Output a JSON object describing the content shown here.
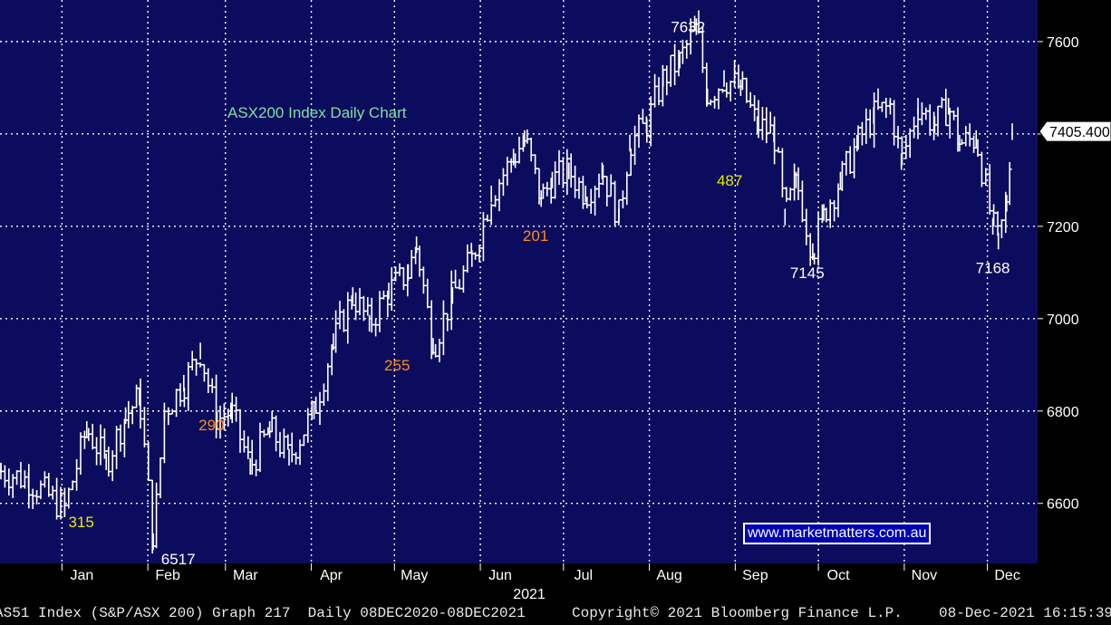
{
  "chart_data": {
    "type": "ohlc",
    "title": "ASX200 Index Daily Chart",
    "y_ticks": [
      6600,
      6800,
      7000,
      7200,
      7400,
      7600
    ],
    "ylim": [
      6470,
      7690
    ],
    "x_months": [
      "Jan",
      "Feb",
      "Mar",
      "Apr",
      "May",
      "Jun",
      "Jul",
      "Aug",
      "Sep",
      "Oct",
      "Nov",
      "Dec"
    ],
    "year_label": "2021",
    "last_price": "7405.400",
    "grid": true,
    "series": [
      {
        "name": "",
        "points": [
          [
            "2020-12-08",
            6670
          ],
          [
            "2020-12-18",
            6650
          ],
          [
            "2020-12-31",
            6588
          ],
          [
            "2021-01-08",
            6760
          ],
          [
            "2021-01-15",
            6690
          ],
          [
            "2021-01-22",
            6790
          ],
          [
            "2021-01-27",
            6830
          ],
          [
            "2021-02-01",
            6517
          ],
          [
            "2021-02-05",
            6800
          ],
          [
            "2021-02-12",
            6860
          ],
          [
            "2021-02-18",
            6930
          ],
          [
            "2021-02-24",
            6780
          ],
          [
            "2021-03-01",
            6800
          ],
          [
            "2021-03-08",
            6680
          ],
          [
            "2021-03-15",
            6760
          ],
          [
            "2021-03-22",
            6700
          ],
          [
            "2021-03-31",
            6800
          ],
          [
            "2021-04-07",
            6950
          ],
          [
            "2021-04-14",
            7050
          ],
          [
            "2021-04-20",
            6990
          ],
          [
            "2021-04-27",
            7060
          ],
          [
            "2021-05-04",
            7100
          ],
          [
            "2021-05-07",
            7160
          ],
          [
            "2021-05-13",
            6940
          ],
          [
            "2021-05-20",
            7050
          ],
          [
            "2021-05-27",
            7130
          ],
          [
            "2021-06-03",
            7270
          ],
          [
            "2021-06-11",
            7350
          ],
          [
            "2021-06-15",
            7390
          ],
          [
            "2021-06-21",
            7260
          ],
          [
            "2021-06-25",
            7300
          ],
          [
            "2021-07-01",
            7320
          ],
          [
            "2021-07-07",
            7270
          ],
          [
            "2021-07-13",
            7320
          ],
          [
            "2021-07-19",
            7220
          ],
          [
            "2021-07-23",
            7380
          ],
          [
            "2021-07-29",
            7420
          ],
          [
            "2021-08-04",
            7520
          ],
          [
            "2021-08-10",
            7560
          ],
          [
            "2021-08-16",
            7632
          ],
          [
            "2021-08-20",
            7480
          ],
          [
            "2021-08-26",
            7520
          ],
          [
            "2021-09-01",
            7500
          ],
          [
            "2021-09-07",
            7420
          ],
          [
            "2021-09-13",
            7400
          ],
          [
            "2021-09-17",
            7220
          ],
          [
            "2021-09-21",
            7300
          ],
          [
            "2021-09-27",
            7145
          ],
          [
            "2021-10-01",
            7230
          ],
          [
            "2021-10-07",
            7300
          ],
          [
            "2021-10-13",
            7380
          ],
          [
            "2021-10-19",
            7440
          ],
          [
            "2021-10-25",
            7460
          ],
          [
            "2021-10-29",
            7340
          ],
          [
            "2021-11-04",
            7460
          ],
          [
            "2021-11-10",
            7420
          ],
          [
            "2021-11-15",
            7460
          ],
          [
            "2021-11-19",
            7380
          ],
          [
            "2021-11-25",
            7390
          ],
          [
            "2021-12-01",
            7200
          ],
          [
            "2021-12-03",
            7168
          ],
          [
            "2021-12-06",
            7250
          ],
          [
            "2021-12-08",
            7405
          ]
        ]
      }
    ],
    "annotations": [
      {
        "text": "7632",
        "x": "2021-08-13",
        "y": 7632,
        "color": "#ffffff"
      },
      {
        "text": "487",
        "x": "2021-08-28",
        "y": 7300,
        "color": "#e8e800"
      },
      {
        "text": "201",
        "x": "2021-06-19",
        "y": 7180,
        "color": "#ff8c1a"
      },
      {
        "text": "7145",
        "x": "2021-09-25",
        "y": 7100,
        "color": "#ffffff"
      },
      {
        "text": "7168",
        "x": "2021-12-01",
        "y": 7110,
        "color": "#ffffff"
      },
      {
        "text": "255",
        "x": "2021-04-30",
        "y": 6900,
        "color": "#ff8c1a"
      },
      {
        "text": "290",
        "x": "2021-02-22",
        "y": 6770,
        "color": "#ff8c1a"
      },
      {
        "text": "315",
        "x": "2021-01-06",
        "y": 6560,
        "color": "#e8e800"
      },
      {
        "text": "6517",
        "x": "2021-02-10",
        "y": 6480,
        "color": "#ffffff"
      }
    ]
  },
  "watermark": "www.marketmatters.com.au",
  "footer": {
    "left": "AS51 Index (S&P/ASX 200) Graph 217  Daily 08DEC2020-08DEC2021",
    "center": "Copyright© 2021 Bloomberg Finance L.P.",
    "right": "08-Dec-2021 16:15:39"
  },
  "colors": {
    "plot_bg": "#0c0c5e",
    "grid": "#ffffff",
    "bars": "#ffffff",
    "axis_text": "#ffffff",
    "title": "#7fe0a2"
  }
}
